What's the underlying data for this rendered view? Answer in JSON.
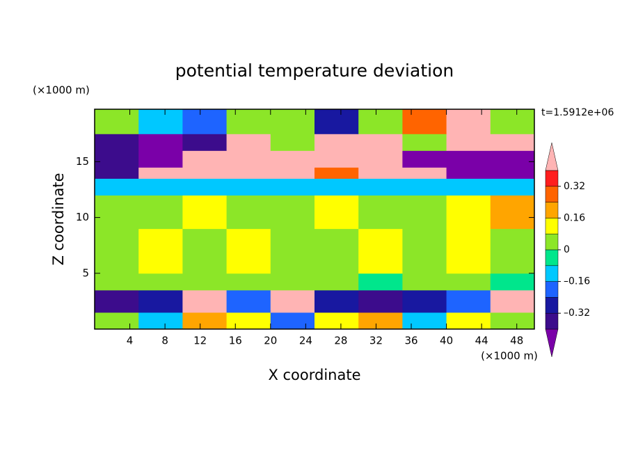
{
  "chart_data": {
    "type": "contour",
    "title": "potential temperature deviation",
    "x_label": "X coordinate",
    "y_label": "Z coordinate",
    "x_units": "(×1000 m)",
    "y_units": "(×1000 m)",
    "annotation": "t=1.5912e+06",
    "xlim": [
      0,
      50
    ],
    "ylim": [
      0,
      19.7
    ],
    "xticks": [
      4,
      8,
      12,
      16,
      20,
      24,
      28,
      32,
      36,
      40,
      44,
      48
    ],
    "yticks": [
      5,
      10,
      15
    ],
    "x_edges": [
      0,
      5,
      10,
      15,
      20,
      25,
      30,
      35,
      40,
      45,
      50
    ],
    "y_edges": [
      0,
      1.5,
      3.5,
      5,
      9,
      12,
      13.5,
      14.5,
      16,
      17.5,
      19.7
    ],
    "z": [
      [
        0.05,
        -0.1,
        0.2,
        0.1,
        -0.2,
        0.1,
        0.2,
        -0.1,
        0.15,
        0.05
      ],
      [
        -0.35,
        -0.3,
        0.45,
        -0.2,
        0.45,
        -0.25,
        -0.35,
        -0.3,
        -0.2,
        0.45
      ],
      [
        0.03,
        0.02,
        0.03,
        0.02,
        0.01,
        0.03,
        -0.02,
        0.02,
        0.03,
        -0.05
      ],
      [
        0.05,
        0.09,
        0.04,
        0.09,
        0.05,
        0.04,
        0.09,
        0.05,
        0.09,
        0.04
      ],
      [
        0.05,
        0.03,
        0.09,
        0.02,
        0.02,
        0.09,
        0.02,
        0.02,
        0.09,
        0.2
      ],
      [
        -0.1,
        -0.1,
        -0.1,
        -0.12,
        -0.1,
        -0.1,
        -0.12,
        -0.1,
        -0.1,
        -0.15
      ],
      [
        -0.35,
        0.45,
        0.45,
        0.45,
        0.45,
        0.3,
        0.45,
        0.45,
        -0.42,
        -0.42
      ],
      [
        -0.35,
        -0.42,
        0.45,
        0.45,
        0.45,
        0.45,
        0.45,
        -0.42,
        -0.42,
        -0.42
      ],
      [
        -0.38,
        -0.42,
        -0.35,
        0.45,
        0.02,
        0.45,
        0.45,
        0.02,
        0.45,
        0.45
      ],
      [
        0.02,
        -0.1,
        -0.2,
        0.02,
        0.02,
        -0.3,
        0.02,
        0.3,
        0.45,
        0.02
      ]
    ],
    "levels": [
      -0.4,
      -0.32,
      -0.24,
      -0.16,
      -0.08,
      0,
      0.08,
      0.16,
      0.24,
      0.32,
      0.4
    ],
    "colors": [
      "#7a00a8",
      "#3c0c8c",
      "#1818a0",
      "#1e64ff",
      "#00c8ff",
      "#00e68c",
      "#8ce628",
      "#ffff00",
      "#ffa500",
      "#ff6400",
      "#ff1e1e",
      "#ffb4b4"
    ],
    "colorbar_ticks": [
      {
        "value": 0.32,
        "label": "0.32"
      },
      {
        "value": 0.16,
        "label": "0.16"
      },
      0,
      {
        "value": -0.16,
        "label": "–0.16"
      },
      {
        "value": -0.32,
        "label": "–0.32"
      }
    ]
  }
}
